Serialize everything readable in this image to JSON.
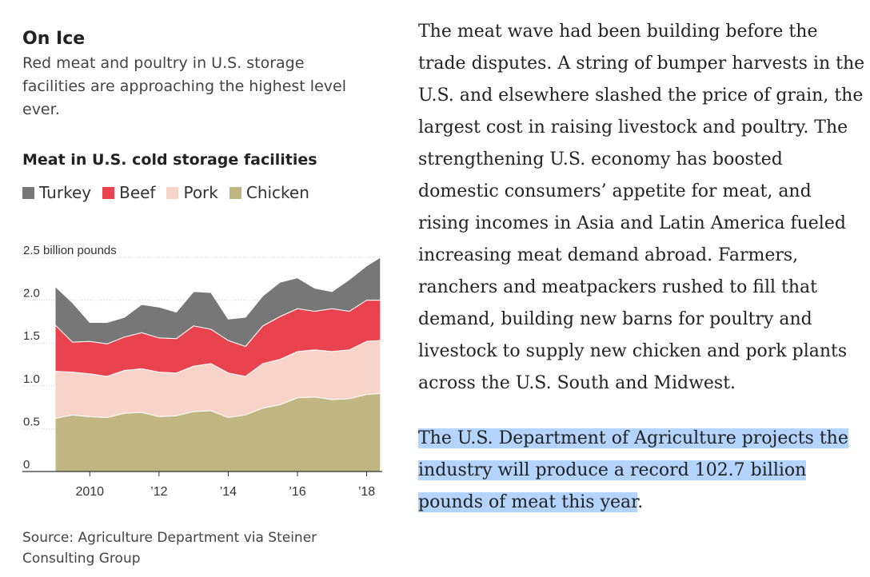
{
  "sidebar": {
    "title": "On Ice",
    "subtitle": "Red meat and poultry in U.S. storage facilities are approaching the highest level ever.",
    "source": "Source: Agriculture Department via Steiner Consulting Group"
  },
  "article": {
    "paragraph1": "The meat wave had been building before the trade disputes. A string of bumper harvests in the U.S. and elsewhere slashed the price of grain, the largest cost in raising livestock and poultry. The strengthening U.S. economy has boosted domestic consumers’ appetite for meat, and rising incomes in Asia and Latin America fueled increasing meat demand abroad. Farmers, ranchers and meatpackers rushed to fill that demand, building new barns for poultry and livestock to supply new chicken and pork plants across the U.S. South and Midwest.",
    "paragraph2": "The U.S. Department of Agriculture projects the industry will produce a record 102.7 billion pounds of meat this year",
    "paragraph2_end": "."
  },
  "colors": {
    "turkey": "#777777",
    "beef": "#e8434f",
    "pork": "#f8d4c8",
    "chicken": "#bfb682",
    "highlight": "#b3d4fc"
  },
  "chart_data": {
    "type": "area",
    "stacked": true,
    "title": "Meat in U.S. cold storage facilities",
    "y_unit_label": "2.5 billion pounds",
    "ylim": [
      0,
      2.5
    ],
    "y_ticks": [
      {
        "value": 0,
        "label": "0"
      },
      {
        "value": 0.5,
        "label": "0.5"
      },
      {
        "value": 1.0,
        "label": "1.0"
      },
      {
        "value": 1.5,
        "label": "1.5"
      },
      {
        "value": 2.0,
        "label": "2.0"
      },
      {
        "value": 2.5,
        "label": "2.5 billion pounds"
      }
    ],
    "xlim": [
      2009.0,
      2018.45
    ],
    "x_ticks": [
      {
        "value": 2010,
        "label": "2010"
      },
      {
        "value": 2012,
        "label": "’12"
      },
      {
        "value": 2014,
        "label": "’14"
      },
      {
        "value": 2016,
        "label": "’16"
      },
      {
        "value": 2018,
        "label": "’18"
      }
    ],
    "grid": true,
    "legend_position": "top-left",
    "x": [
      2009.0,
      2009.5,
      2010.0,
      2010.5,
      2011.0,
      2011.5,
      2012.0,
      2012.5,
      2013.0,
      2013.5,
      2014.0,
      2014.5,
      2015.0,
      2015.5,
      2016.0,
      2016.5,
      2017.0,
      2017.5,
      2018.0,
      2018.4
    ],
    "series": [
      {
        "name": "Chicken",
        "values": [
          0.62,
          0.66,
          0.64,
          0.63,
          0.68,
          0.69,
          0.64,
          0.65,
          0.7,
          0.71,
          0.63,
          0.66,
          0.74,
          0.78,
          0.86,
          0.87,
          0.84,
          0.85,
          0.9,
          0.91
        ]
      },
      {
        "name": "Pork",
        "values": [
          0.55,
          0.5,
          0.5,
          0.48,
          0.5,
          0.51,
          0.52,
          0.5,
          0.53,
          0.55,
          0.52,
          0.45,
          0.52,
          0.53,
          0.54,
          0.55,
          0.56,
          0.57,
          0.62,
          0.62
        ]
      },
      {
        "name": "Beef",
        "values": [
          0.54,
          0.35,
          0.38,
          0.38,
          0.39,
          0.42,
          0.4,
          0.4,
          0.47,
          0.4,
          0.38,
          0.35,
          0.44,
          0.5,
          0.5,
          0.45,
          0.5,
          0.45,
          0.48,
          0.47
        ]
      },
      {
        "name": "Turkey",
        "values": [
          0.45,
          0.46,
          0.22,
          0.25,
          0.23,
          0.33,
          0.36,
          0.31,
          0.4,
          0.43,
          0.25,
          0.34,
          0.35,
          0.4,
          0.36,
          0.27,
          0.2,
          0.37,
          0.4,
          0.5
        ]
      }
    ]
  }
}
